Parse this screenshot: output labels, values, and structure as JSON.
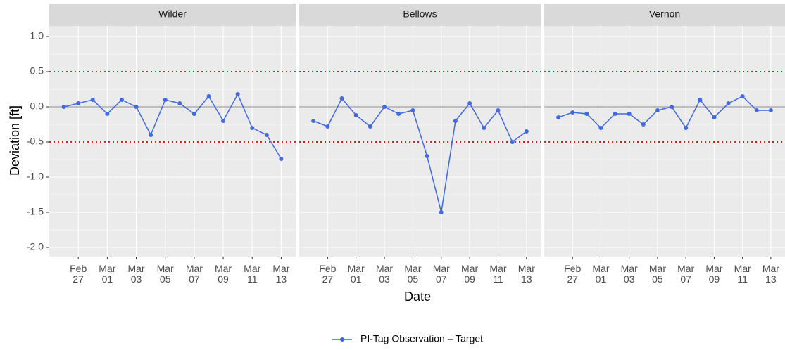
{
  "chart_data": {
    "type": "line",
    "xlabel": "Date",
    "ylabel": "Deviation [ft]",
    "x": [
      "Feb 26",
      "Feb 27",
      "Feb 28",
      "Mar 01",
      "Mar 02",
      "Mar 03",
      "Mar 04",
      "Mar 05",
      "Mar 06",
      "Mar 07",
      "Mar 08",
      "Mar 09",
      "Mar 10",
      "Mar 11",
      "Mar 12",
      "Mar 13"
    ],
    "series_name": "PI-Tag Observation – Target",
    "color": "#4169e1",
    "facets": [
      {
        "title": "Wilder",
        "values": [
          0.0,
          0.05,
          0.1,
          -0.1,
          0.1,
          0.0,
          -0.4,
          0.1,
          0.05,
          -0.1,
          0.15,
          -0.2,
          0.18,
          -0.3,
          -0.4,
          -0.74
        ]
      },
      {
        "title": "Bellows",
        "values": [
          -0.2,
          -0.28,
          0.12,
          -0.12,
          -0.28,
          0.0,
          -0.1,
          -0.05,
          -0.7,
          -1.5,
          -0.2,
          0.05,
          -0.3,
          -0.05,
          -0.5,
          -0.35
        ]
      },
      {
        "title": "Vernon",
        "values": [
          -0.15,
          -0.08,
          -0.1,
          -0.3,
          -0.1,
          -0.1,
          -0.25,
          -0.05,
          0.0,
          -0.3,
          0.1,
          -0.15,
          0.05,
          0.15,
          -0.05,
          -0.05
        ]
      }
    ],
    "xlim": [
      "Feb 25",
      "Mar 14"
    ],
    "xticks": [
      "Feb 27",
      "Mar 01",
      "Mar 03",
      "Mar 05",
      "Mar 07",
      "Mar 09",
      "Mar 11",
      "Mar 13"
    ],
    "ylim": [
      -2.13,
      1.15
    ],
    "yticks": [
      {
        "value": -2,
        "label": "-2.0"
      },
      {
        "value": -1.5,
        "label": "-1.5"
      },
      {
        "value": -1,
        "label": "-1.0"
      },
      {
        "value": -0.5,
        "label": "-0.5"
      },
      {
        "value": 0,
        "label": "0.0"
      },
      {
        "value": 0.5,
        "label": "0.5"
      },
      {
        "value": 1,
        "label": "1.0"
      }
    ],
    "reference_line": 0,
    "threshold_lines": [
      -0.5,
      0.5
    ],
    "grid": true,
    "legend": "bottom"
  }
}
